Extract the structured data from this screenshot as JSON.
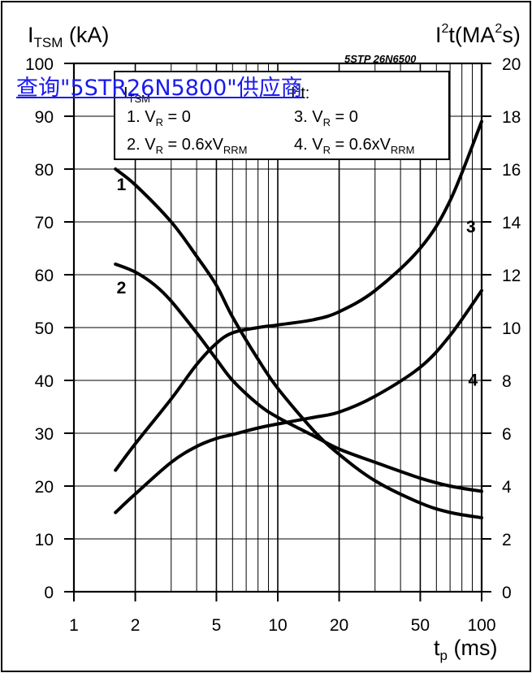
{
  "page": {
    "overlay_link_text": "查询\"5STR26N5800\"供应商"
  },
  "chart_data": {
    "type": "line",
    "part_label": "5STP 26N6500",
    "left_axis": {
      "label_main": "I",
      "label_sub": "TSM",
      "label_unit": " (kA)",
      "ylim": [
        0,
        100
      ],
      "ticks": [
        0,
        10,
        20,
        30,
        40,
        50,
        60,
        70,
        80,
        90,
        100
      ]
    },
    "right_axis": {
      "label_main": "I",
      "label_sup1": "2",
      "label_mid": "t(MA",
      "label_sup2": "2",
      "label_end": "s)",
      "ylim": [
        0,
        20
      ],
      "ticks": [
        0,
        2,
        4,
        6,
        8,
        10,
        12,
        14,
        16,
        18,
        20
      ]
    },
    "x_axis": {
      "label_main": "t",
      "label_sub": "p",
      "label_unit": " (ms)",
      "scale": "log",
      "xlim": [
        1,
        100
      ],
      "ticks": [
        1,
        2,
        5,
        10,
        20,
        50,
        100
      ]
    },
    "legend": {
      "itsm_title_main": "I",
      "itsm_title_sub": "TSM",
      "itsm_title_end": ":",
      "i2t_title_main": "I",
      "i2t_title_sup": "2",
      "i2t_title_end": "t:",
      "items": [
        {
          "prefix": "1. V",
          "sub": "R",
          "value": " = 0",
          "sub2": ""
        },
        {
          "prefix": "2. V",
          "sub": "R",
          "value": " = 0.6xV",
          "sub2": "RRM"
        },
        {
          "prefix": "3. V",
          "sub": "R",
          "value": " = 0",
          "sub2": ""
        },
        {
          "prefix": "4. V",
          "sub": "R",
          "value": " = 0.6xV",
          "sub2": "RRM"
        }
      ]
    },
    "series": [
      {
        "label": "1",
        "axis": "left",
        "label_at": [
          1.62,
          76
        ],
        "x": [
          1.6,
          2,
          3,
          4,
          5,
          6,
          8,
          10,
          15,
          20,
          30,
          50,
          70,
          100
        ],
        "y": [
          80,
          77,
          70,
          63.5,
          58,
          52,
          44,
          38.5,
          30.5,
          26,
          21,
          16.8,
          15,
          14
        ]
      },
      {
        "label": "2",
        "axis": "left",
        "label_at": [
          1.62,
          56.5
        ],
        "x": [
          1.6,
          2,
          2.5,
          3,
          4,
          5,
          6,
          8,
          10,
          15,
          20,
          30,
          50,
          70,
          100
        ],
        "y": [
          62,
          60.5,
          58,
          55,
          49,
          44,
          40,
          35.5,
          33,
          29.5,
          27,
          24.5,
          21.5,
          20,
          19
        ]
      },
      {
        "label": "3",
        "axis": "right",
        "label_at": [
          84,
          13.6
        ],
        "x": [
          1.6,
          2,
          3,
          4,
          5,
          6,
          8,
          10,
          15,
          20,
          30,
          50,
          70,
          100
        ],
        "y": [
          4.6,
          5.6,
          7.3,
          8.6,
          9.4,
          9.8,
          10,
          10.1,
          10.3,
          10.6,
          11.4,
          13,
          14.8,
          17.8
        ]
      },
      {
        "label": "4",
        "axis": "right",
        "label_at": [
          86,
          7.8
        ],
        "x": [
          1.6,
          2,
          3,
          4,
          5,
          6,
          8,
          10,
          15,
          20,
          30,
          50,
          70,
          100
        ],
        "y": [
          3,
          3.7,
          4.9,
          5.5,
          5.8,
          5.95,
          6.2,
          6.35,
          6.6,
          6.8,
          7.4,
          8.5,
          9.7,
          11.4
        ]
      }
    ],
    "grid": true
  }
}
